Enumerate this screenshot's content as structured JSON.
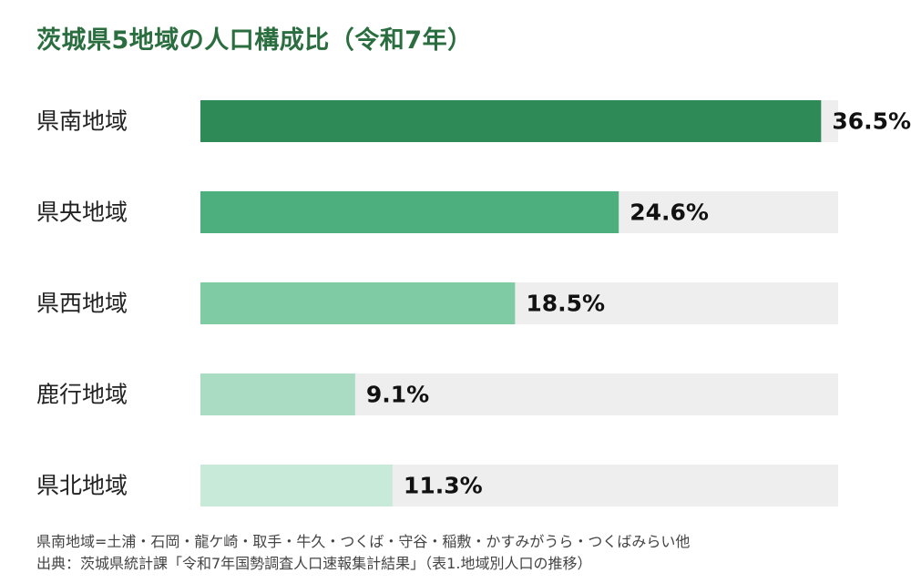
{
  "title": "茨城県5地域の人口構成比（令和7年）",
  "chart_data": {
    "type": "bar",
    "orientation": "horizontal",
    "categories": [
      "県南地域",
      "県央地域",
      "県西地域",
      "鹿行地域",
      "県北地域"
    ],
    "values": [
      36.5,
      24.6,
      18.5,
      9.1,
      11.3
    ],
    "value_labels": [
      "36.5%",
      "24.6%",
      "18.5%",
      "9.1%",
      "11.3%"
    ],
    "xlim": [
      0,
      37.5
    ],
    "colors": [
      "#2e8b57",
      "#4caf7d",
      "#7fcba3",
      "#a9dcc2",
      "#c8ebd9"
    ],
    "track_color": "#eeeeee",
    "unit": "%"
  },
  "notes": {
    "region_definition": "県南地域=土浦・石岡・龍ケ崎・取手・牛久・つくば・守谷・稲敷・かすみがうら・つくばみらい他",
    "source": "出典：茨城県統計課「令和7年国勢調査人口速報集計結果」（表1.地域別人口の推移）"
  }
}
